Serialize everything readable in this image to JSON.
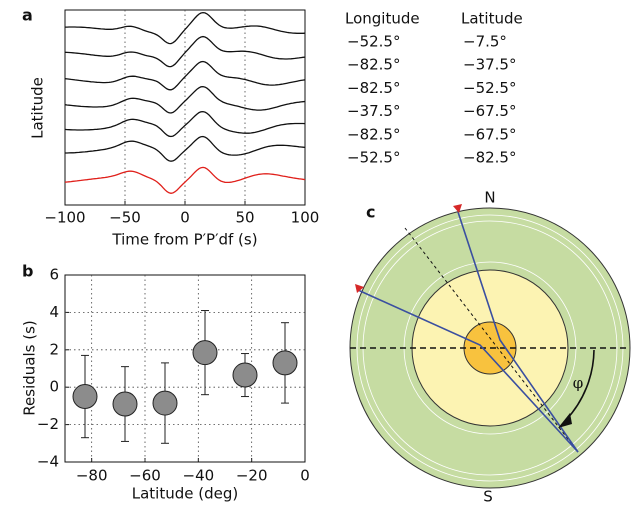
{
  "chart_data": [
    {
      "type": "line",
      "panel_label": "a",
      "xlabel": "Time from P′P′df  (s)",
      "ylabel": "Latitude",
      "xlim": [
        -100,
        100
      ],
      "xticks": [
        {
          "value": -100,
          "label": "−100"
        },
        {
          "value": -50,
          "label": "−50"
        },
        0,
        50,
        100
      ],
      "grid": true
    },
    {
      "type": "scatter",
      "panel_label": "b",
      "xlabel": "Latitude (deg)",
      "ylabel": "Residuals (s)",
      "x": [
        -82.5,
        -67.5,
        -52.5,
        -37.5,
        -22.5,
        -7.5
      ],
      "values": [
        -0.5,
        -0.9,
        -0.85,
        1.85,
        0.65,
        1.3
      ],
      "errors": [
        2.2,
        2.0,
        2.15,
        2.25,
        1.15,
        2.15
      ],
      "color": "#8c8c8c",
      "xlim": [
        -90,
        0
      ],
      "xticks": [
        {
          "value": -80,
          "label": "−80"
        },
        {
          "value": -60,
          "label": "−60"
        },
        {
          "value": -40,
          "label": "−40"
        },
        {
          "value": -20,
          "label": "−20"
        },
        0
      ],
      "ylim": [
        -4,
        6
      ],
      "yticks": [
        {
          "value": -4,
          "label": "−4"
        },
        {
          "value": -2,
          "label": "−2"
        },
        0,
        2,
        4,
        6
      ],
      "grid": true
    }
  ],
  "table": {
    "header": [
      "Longitude",
      "Latitude"
    ],
    "rows": [
      [
        "−52.5°",
        "−7.5°"
      ],
      [
        "−82.5°",
        "−37.5°"
      ],
      [
        "−82.5°",
        "−52.5°"
      ],
      [
        "−37.5°",
        "−67.5°"
      ],
      [
        "−82.5°",
        "−67.5°"
      ],
      [
        "−52.5°",
        "−82.5°"
      ]
    ]
  },
  "diagram": {
    "panel_label": "c",
    "north": "N",
    "south": "S",
    "angle": "φ"
  }
}
